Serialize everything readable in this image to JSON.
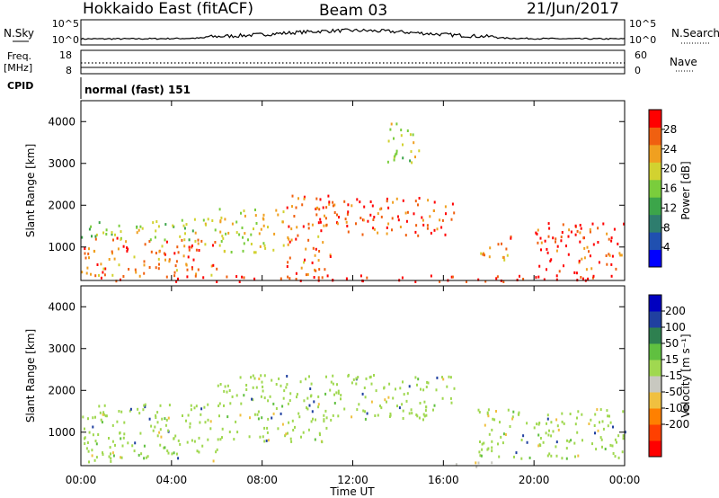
{
  "header": {
    "station": "Hokkaido East (fitACF)",
    "beam": "Beam 03",
    "date": "21/Jun/2017"
  },
  "aux_panels": {
    "nsky_label": "N.Sky",
    "nsky_ticks": [
      "10^5",
      "10^0"
    ],
    "nsearch_label": "N.Search",
    "nsearch_ticks": [
      "10^5",
      "10^0"
    ],
    "freq_label": "Freq.",
    "freq_unit": "[MHz]",
    "freq_ticks": [
      "18",
      "8"
    ],
    "nave_label": "Nave",
    "nave_ticks": [
      "60",
      "0"
    ],
    "cpid_label": "CPID",
    "cpid_value": "normal (fast) 151"
  },
  "colors": {
    "power_scale": [
      "#0000ff",
      "#2050b0",
      "#2e7d6e",
      "#3ca54a",
      "#7acd3c",
      "#d2d230",
      "#f0a020",
      "#f06010",
      "#ff0000"
    ],
    "velocity_scale": [
      "#ff0000",
      "#ff4000",
      "#ff8000",
      "#f0c040",
      "#c8c8c0",
      "#a0d850",
      "#60c040",
      "#2e8050",
      "#2040a0",
      "#0000c0"
    ],
    "frame": "#000000"
  },
  "chart_data": [
    {
      "type": "heatmap",
      "name": "power",
      "xlabel": "",
      "ylabel": "Slant Range [km]",
      "ylim": [
        200,
        4500
      ],
      "xlim": [
        "00:00",
        "24:00"
      ],
      "y_ticks": [
        "1000",
        "2000",
        "3000",
        "4000"
      ],
      "colorbar_label": "Power [dB]",
      "colorbar_ticks": [
        "4",
        "8",
        "12",
        "16",
        "20",
        "24",
        "28"
      ],
      "colorbar_range": [
        0,
        32
      ],
      "echo_regions": [
        {
          "t_start": 0.0,
          "t_end": 6.0,
          "r_min": 300,
          "r_max": 1300,
          "value": 25
        },
        {
          "t_start": 0.0,
          "t_end": 6.0,
          "r_min": 1200,
          "r_max": 1700,
          "value": 17
        },
        {
          "t_start": 6.0,
          "t_end": 9.0,
          "r_min": 900,
          "r_max": 2000,
          "value": 20
        },
        {
          "t_start": 9.0,
          "t_end": 11.0,
          "r_min": 300,
          "r_max": 2300,
          "value": 26
        },
        {
          "t_start": 10.5,
          "t_end": 16.5,
          "r_min": 1300,
          "r_max": 2200,
          "value": 27
        },
        {
          "t_start": 13.5,
          "t_end": 15.0,
          "r_min": 3000,
          "r_max": 4000,
          "value": 18
        },
        {
          "t_start": 17.5,
          "t_end": 19.0,
          "r_min": 700,
          "r_max": 1300,
          "value": 24
        },
        {
          "t_start": 20.0,
          "t_end": 24.0,
          "r_min": 400,
          "r_max": 1600,
          "value": 27
        },
        {
          "t_start": 0.0,
          "t_end": 24.0,
          "r_min": 200,
          "r_max": 350,
          "value": 30
        }
      ]
    },
    {
      "type": "heatmap",
      "name": "velocity",
      "xlabel": "Time UT",
      "ylabel": "Slant Range [km]",
      "ylim": [
        200,
        4500
      ],
      "xlim": [
        "00:00",
        "24:00"
      ],
      "x_ticks": [
        "00:00",
        "04:00",
        "08:00",
        "12:00",
        "16:00",
        "20:00",
        "00:00"
      ],
      "y_ticks": [
        "1000",
        "2000",
        "3000",
        "4000"
      ],
      "colorbar_label": "Velocity [m s⁻¹]",
      "colorbar_ticks": [
        "200",
        "100",
        "50",
        "15",
        "-15",
        "-50",
        "-100",
        "-200"
      ],
      "dominant_value": 0,
      "echo_regions": [
        {
          "t_start": 0.0,
          "t_end": 6.0,
          "r_min": 300,
          "r_max": 1700,
          "value": 0
        },
        {
          "t_start": 6.0,
          "t_end": 11.0,
          "r_min": 800,
          "r_max": 2400,
          "value": 0
        },
        {
          "t_start": 11.0,
          "t_end": 16.5,
          "r_min": 1300,
          "r_max": 2400,
          "value": 0
        },
        {
          "t_start": 17.5,
          "t_end": 24.0,
          "r_min": 400,
          "r_max": 1600,
          "value": 0
        },
        {
          "t_start": 16.5,
          "t_end": 18.5,
          "r_min": 200,
          "r_max": 350,
          "value": -40
        }
      ]
    }
  ]
}
